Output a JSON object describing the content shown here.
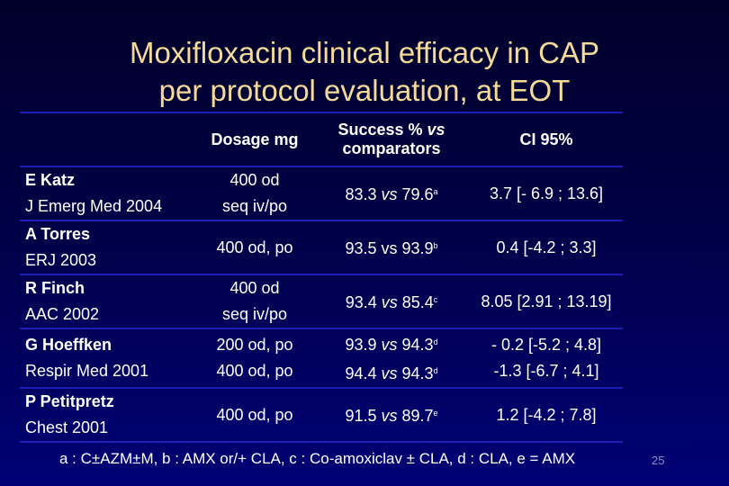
{
  "title_lines": [
    "Moxifloxacin clinical efficacy in CAP",
    "per protocol evaluation, at EOT"
  ],
  "table": {
    "headers": {
      "dosage": "Dosage mg",
      "success_line1_prefix": "Success % ",
      "success_line1_vs": "vs",
      "success_line2": "comparators",
      "ci": "CI 95%"
    },
    "rows": [
      {
        "author": "E Katz",
        "journal": "J Emerg Med 2004",
        "dosage": [
          "400 od",
          "seq iv/po"
        ],
        "success": [
          {
            "a": "83.3 ",
            "vs": "vs",
            "b": " 79.6",
            "sup": "a"
          }
        ],
        "ci": [
          "3.7 [- 6.9 ; 13.6]"
        ]
      },
      {
        "author": "A Torres",
        "journal": "ERJ 2003",
        "dosage": [
          "400 od, po"
        ],
        "success": [
          {
            "a": "93.5 ",
            "vs": "vs",
            "b": " 93.9",
            "sup": "b",
            "upright": true
          }
        ],
        "ci": [
          "0.4 [-4.2 ; 3.3]"
        ]
      },
      {
        "author": "R Finch",
        "journal": "AAC 2002",
        "dosage": [
          "400 od",
          "seq iv/po"
        ],
        "success": [
          {
            "a": "93.4 ",
            "vs": "vs",
            "b": " 85.4",
            "sup": "c"
          }
        ],
        "ci": [
          "8.05 [2.91 ; 13.19]"
        ]
      },
      {
        "author": "G Hoeffken",
        "journal": "Respir Med 2001",
        "dosage": [
          "200 od, po",
          "400 od, po"
        ],
        "success": [
          {
            "a": "93.9 ",
            "vs": "vs",
            "b": " 94.3",
            "sup": "d"
          },
          {
            "a": "94.4 ",
            "vs": "vs",
            "b": " 94.3",
            "sup": "d"
          }
        ],
        "ci": [
          "- 0.2 [-5.2 ; 4.8]",
          "-1.3 [-6.7 ; 4.1]"
        ]
      },
      {
        "author": "P Petitpretz",
        "journal": "Chest 2001",
        "dosage": [
          "400 od, po"
        ],
        "success": [
          {
            "a": "91.5 ",
            "vs": "vs",
            "b": " 89.7",
            "sup": "e"
          }
        ],
        "ci": [
          "1.2 [-4.2 ; 7.8]"
        ]
      }
    ]
  },
  "footnote": "a : C±AZM±M, b : AMX or/+ CLA, c : Co-amoxiclav ± CLA, d : CLA, e = AMX",
  "slide_number": "25",
  "colors": {
    "title": "#f5d998",
    "rule": "#1b1fb5",
    "background_top": "#00002a",
    "background_bottom": "#000075"
  }
}
